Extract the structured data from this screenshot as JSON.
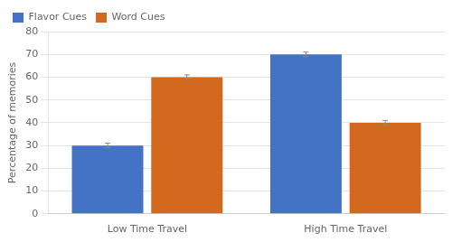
{
  "chart_data": {
    "type": "bar",
    "categories": [
      "Low Time Travel",
      "High Time Travel"
    ],
    "series": [
      {
        "name": "Flavor Cues",
        "color": "#4472C4",
        "values": [
          30,
          70
        ],
        "errors": [
          1.0,
          1.0
        ]
      },
      {
        "name": "Word Cues",
        "color": "#D2691E",
        "values": [
          60,
          40
        ],
        "errors": [
          1.0,
          1.0
        ]
      }
    ],
    "ylabel": "Percentage of memories",
    "ylim": [
      0,
      80
    ],
    "yticks": [
      0,
      10,
      20,
      30,
      40,
      50,
      60,
      70,
      80
    ],
    "grid": true,
    "legend": "upper left"
  }
}
